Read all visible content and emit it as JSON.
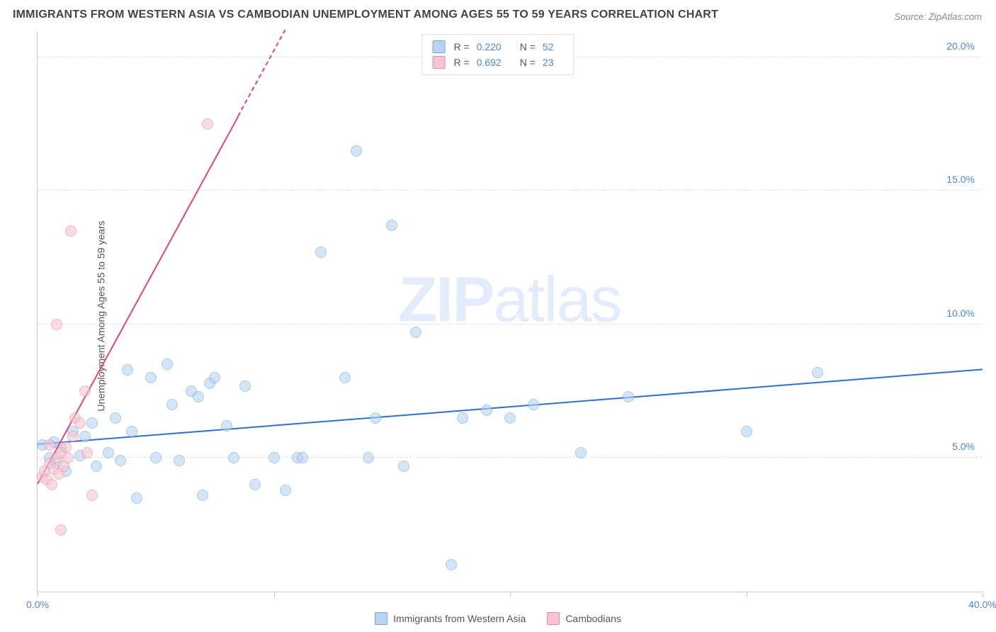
{
  "title": "IMMIGRANTS FROM WESTERN ASIA VS CAMBODIAN UNEMPLOYMENT AMONG AGES 55 TO 59 YEARS CORRELATION CHART",
  "source": "Source: ZipAtlas.com",
  "watermark_a": "ZIP",
  "watermark_b": "atlas",
  "y_axis_label": "Unemployment Among Ages 55 to 59 years",
  "chart": {
    "type": "scatter",
    "background_color": "#ffffff",
    "grid_color": "#e0e0e0",
    "axis_color": "#cccccc",
    "tick_label_color": "#4a86e8",
    "xlim": [
      0,
      40
    ],
    "ylim": [
      0,
      21
    ],
    "y_ticks": [
      5,
      10,
      15,
      20
    ],
    "y_tick_labels": [
      "5.0%",
      "10.0%",
      "15.0%",
      "20.0%"
    ],
    "x_ticks": [
      0,
      10,
      20,
      30,
      40
    ],
    "x_tick_labels": [
      "0.0%",
      "",
      "",
      "",
      "40.0%"
    ],
    "marker_radius": 8,
    "marker_opacity": 0.6,
    "series": [
      {
        "name": "Immigrants from Western Asia",
        "fill": "#b8d4f0",
        "stroke": "#6fa8dc",
        "trend_color": "#2a6fdb",
        "R": "0.220",
        "N": "52",
        "trend": {
          "x1": 0,
          "y1": 5.5,
          "x2": 40,
          "y2": 8.3,
          "dashed_after_x": null
        },
        "points": [
          [
            0.2,
            5.5
          ],
          [
            0.5,
            5.0
          ],
          [
            0.7,
            5.6
          ],
          [
            0.8,
            4.8
          ],
          [
            1.0,
            5.4
          ],
          [
            1.2,
            4.5
          ],
          [
            1.5,
            6.0
          ],
          [
            1.8,
            5.1
          ],
          [
            2.0,
            5.8
          ],
          [
            2.3,
            6.3
          ],
          [
            2.5,
            4.7
          ],
          [
            3.0,
            5.2
          ],
          [
            3.3,
            6.5
          ],
          [
            3.5,
            4.9
          ],
          [
            4.0,
            6.0
          ],
          [
            4.2,
            3.5
          ],
          [
            4.8,
            8.0
          ],
          [
            5.0,
            5.0
          ],
          [
            5.5,
            8.5
          ],
          [
            6.0,
            4.9
          ],
          [
            6.5,
            7.5
          ],
          [
            7.0,
            3.6
          ],
          [
            7.3,
            7.8
          ],
          [
            7.5,
            8.0
          ],
          [
            8.0,
            6.2
          ],
          [
            8.3,
            5.0
          ],
          [
            8.8,
            7.7
          ],
          [
            9.2,
            4.0
          ],
          [
            10.0,
            5.0
          ],
          [
            10.5,
            3.8
          ],
          [
            11.0,
            5.0
          ],
          [
            11.2,
            5.0
          ],
          [
            12.0,
            12.7
          ],
          [
            13.0,
            8.0
          ],
          [
            13.5,
            16.5
          ],
          [
            14.0,
            5.0
          ],
          [
            14.3,
            6.5
          ],
          [
            15.0,
            13.7
          ],
          [
            15.5,
            4.7
          ],
          [
            16.0,
            9.7
          ],
          [
            17.5,
            1.0
          ],
          [
            18.0,
            6.5
          ],
          [
            19.0,
            6.8
          ],
          [
            20.0,
            6.5
          ],
          [
            21.0,
            7.0
          ],
          [
            23.0,
            5.2
          ],
          [
            25.0,
            7.3
          ],
          [
            30.0,
            6.0
          ],
          [
            33.0,
            8.2
          ],
          [
            3.8,
            8.3
          ],
          [
            5.7,
            7.0
          ],
          [
            6.8,
            7.3
          ]
        ]
      },
      {
        "name": "Cambodians",
        "fill": "#f5c5d1",
        "stroke": "#e88ba3",
        "trend_color": "#e0457a",
        "R": "0.692",
        "N": "23",
        "trend": {
          "x1": 0,
          "y1": 4.0,
          "x2": 10.5,
          "y2": 21,
          "dashed_after_x": 8.5
        },
        "points": [
          [
            0.2,
            4.3
          ],
          [
            0.3,
            4.5
          ],
          [
            0.4,
            4.2
          ],
          [
            0.5,
            4.8
          ],
          [
            0.6,
            4.0
          ],
          [
            0.7,
            4.6
          ],
          [
            0.8,
            5.0
          ],
          [
            0.9,
            4.4
          ],
          [
            1.0,
            5.2
          ],
          [
            1.1,
            4.7
          ],
          [
            1.2,
            5.4
          ],
          [
            1.3,
            5.0
          ],
          [
            1.5,
            5.8
          ],
          [
            1.6,
            6.5
          ],
          [
            1.8,
            6.3
          ],
          [
            2.0,
            7.5
          ],
          [
            2.1,
            5.2
          ],
          [
            2.3,
            3.6
          ],
          [
            1.0,
            2.3
          ],
          [
            0.8,
            10.0
          ],
          [
            1.4,
            13.5
          ],
          [
            7.2,
            17.5
          ],
          [
            0.5,
            5.5
          ]
        ]
      }
    ]
  },
  "legend_bottom": [
    "Immigrants from Western Asia",
    "Cambodians"
  ]
}
